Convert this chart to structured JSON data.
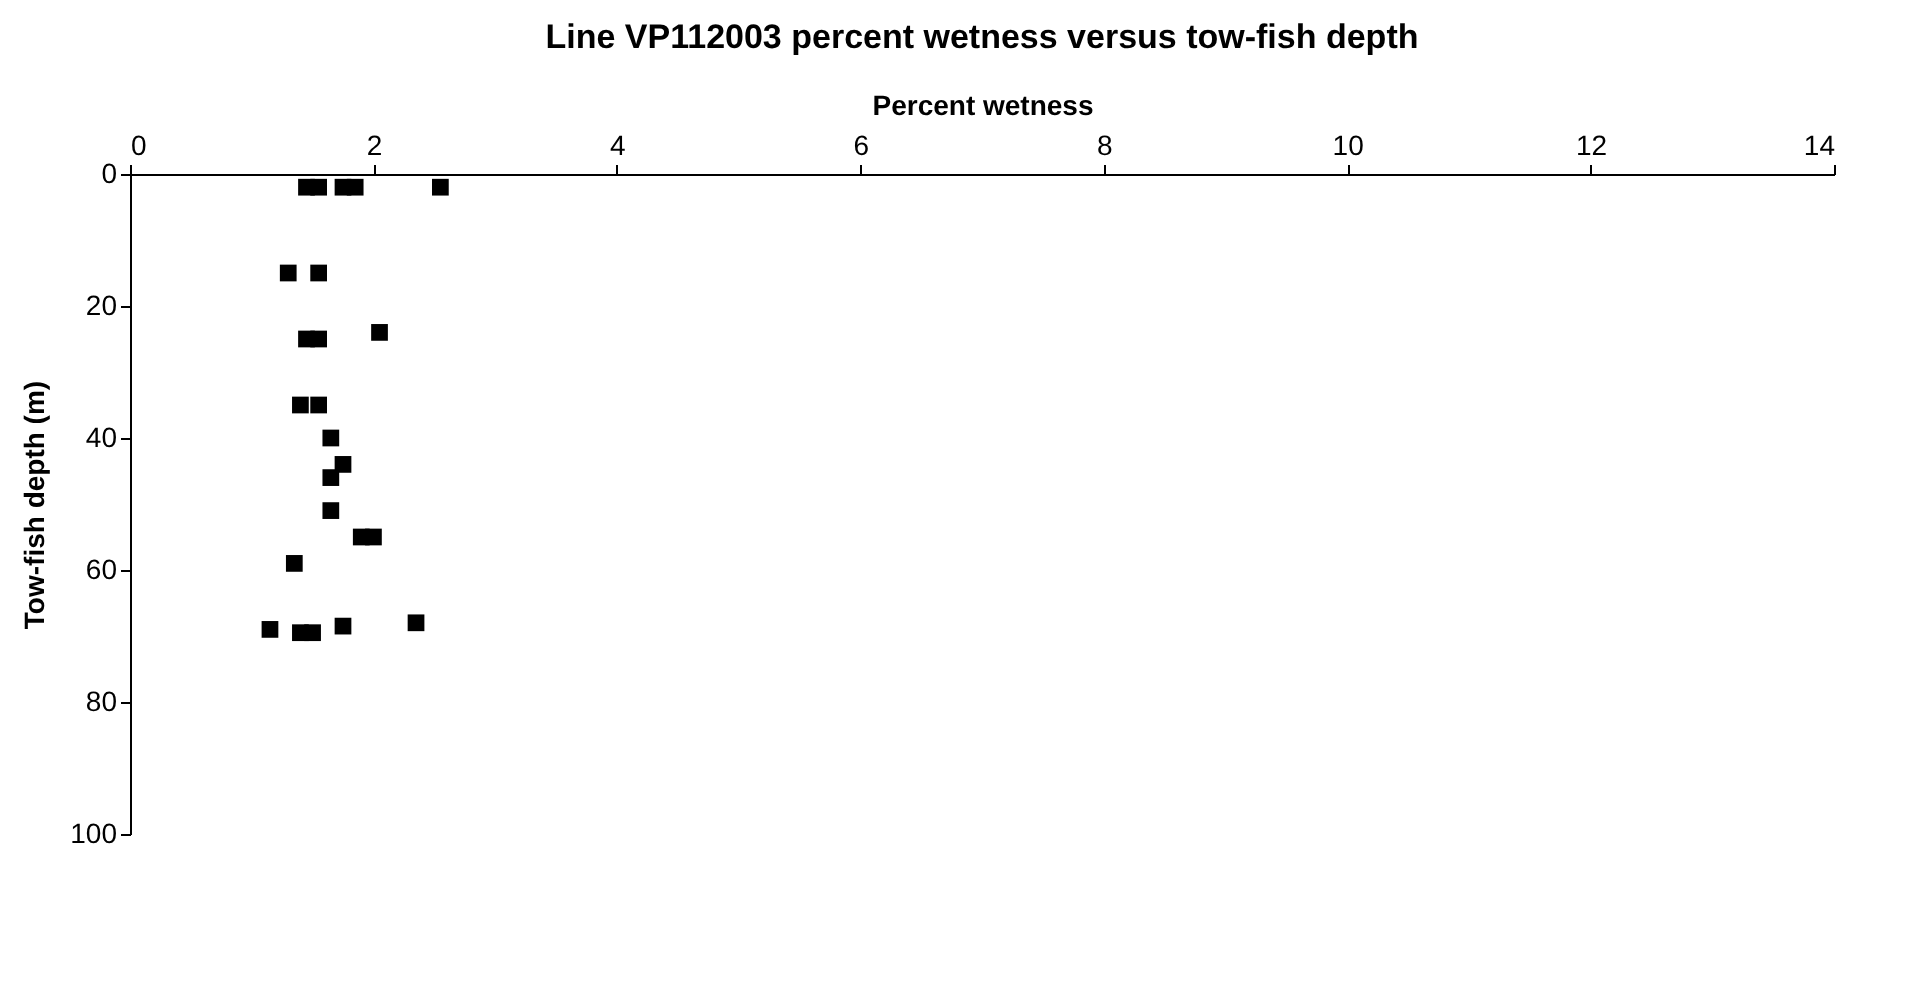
{
  "chart_data": {
    "type": "scatter",
    "title": "Line VP112003 percent wetness versus tow-fish depth",
    "xlabel": "Percent wetness",
    "ylabel": "Tow-fish depth (m)",
    "x": [
      1.45,
      1.55,
      1.75,
      1.85,
      2.55,
      1.3,
      1.55,
      1.45,
      1.55,
      2.05,
      1.4,
      1.55,
      1.65,
      1.75,
      1.65,
      1.65,
      1.9,
      2.0,
      1.35,
      2.35,
      1.75,
      1.15,
      1.4,
      1.5
    ],
    "values": [
      2,
      2,
      2,
      2,
      2,
      15,
      15,
      25,
      25,
      24,
      35,
      35,
      40,
      44,
      46,
      51,
      55,
      55,
      59,
      68,
      68.5,
      69,
      69.5,
      69.5
    ],
    "color": "#000000",
    "marker": "square",
    "grid": false,
    "xlim": [
      0,
      14
    ],
    "xticks": [
      0,
      2,
      4,
      6,
      8,
      10,
      12,
      14
    ],
    "ylim": [
      100,
      0
    ],
    "yticks": [
      0,
      20,
      40,
      60,
      80,
      100
    ]
  }
}
